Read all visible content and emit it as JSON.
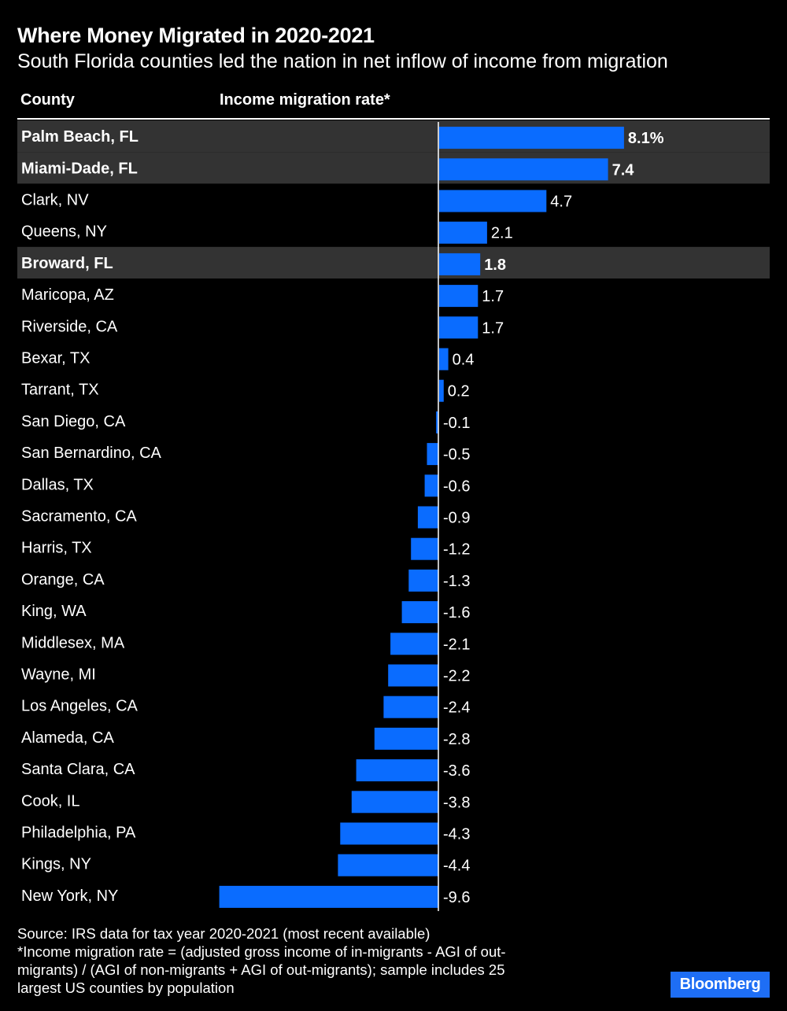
{
  "title": "Where Money Migrated in 2020-2021",
  "subtitle": "South Florida counties led the nation in net inflow of income from migration",
  "columns": {
    "county": "County",
    "rate": "Income migration rate*"
  },
  "colors": {
    "bar": "#0a6cff",
    "highlight_row": "#333333",
    "background": "#000000",
    "text": "#ffffff",
    "brand": "#1e6ef5"
  },
  "chart_data": {
    "type": "bar",
    "orientation": "horizontal",
    "title": "Where Money Migrated in 2020-2021",
    "xlabel": "Income migration rate*",
    "ylabel": "County",
    "xlim": [
      -9.6,
      8.1
    ],
    "unit_suffix_first": "%",
    "categories": [
      "Palm Beach, FL",
      "Miami-Dade, FL",
      "Clark, NV",
      "Queens, NY",
      "Broward, FL",
      "Maricopa, AZ",
      "Riverside, CA",
      "Bexar, TX",
      "Tarrant, TX",
      "San Diego, CA",
      "San Bernardino, CA",
      "Dallas, TX",
      "Sacramento, CA",
      "Harris, TX",
      "Orange, CA",
      "King, WA",
      "Middlesex, MA",
      "Wayne, MI",
      "Los Angeles, CA",
      "Alameda, CA",
      "Santa Clara, CA",
      "Cook, IL",
      "Philadelphia, PA",
      "Kings, NY",
      "New York, NY"
    ],
    "values": [
      8.1,
      7.4,
      4.7,
      2.1,
      1.8,
      1.7,
      1.7,
      0.4,
      0.2,
      -0.1,
      -0.5,
      -0.6,
      -0.9,
      -1.2,
      -1.3,
      -1.6,
      -2.1,
      -2.2,
      -2.4,
      -2.8,
      -3.6,
      -3.8,
      -4.3,
      -4.4,
      -9.6
    ],
    "labels": [
      "8.1%",
      "7.4",
      "4.7",
      "2.1",
      "1.8",
      "1.7",
      "1.7",
      "0.4",
      "0.2",
      "-0.1",
      "-0.5",
      "-0.6",
      "-0.9",
      "-1.2",
      "-1.3",
      "-1.6",
      "-2.1",
      "-2.2",
      "-2.4",
      "-2.8",
      "-3.6",
      "-3.8",
      "-4.3",
      "-4.4",
      "-9.6"
    ],
    "highlighted": [
      "Palm Beach, FL",
      "Miami-Dade, FL",
      "Broward, FL"
    ]
  },
  "footer": {
    "source": "Source: IRS data for tax year 2020-2021 (most recent available)",
    "note_lines": [
      "*Income migration rate = (adjusted gross income of in-migrants - AGI of out-",
      "migrants) / (AGI of non-migrants + AGI of out-migrants); sample includes 25",
      "largest US counties by population"
    ]
  },
  "brand": "Bloomberg"
}
